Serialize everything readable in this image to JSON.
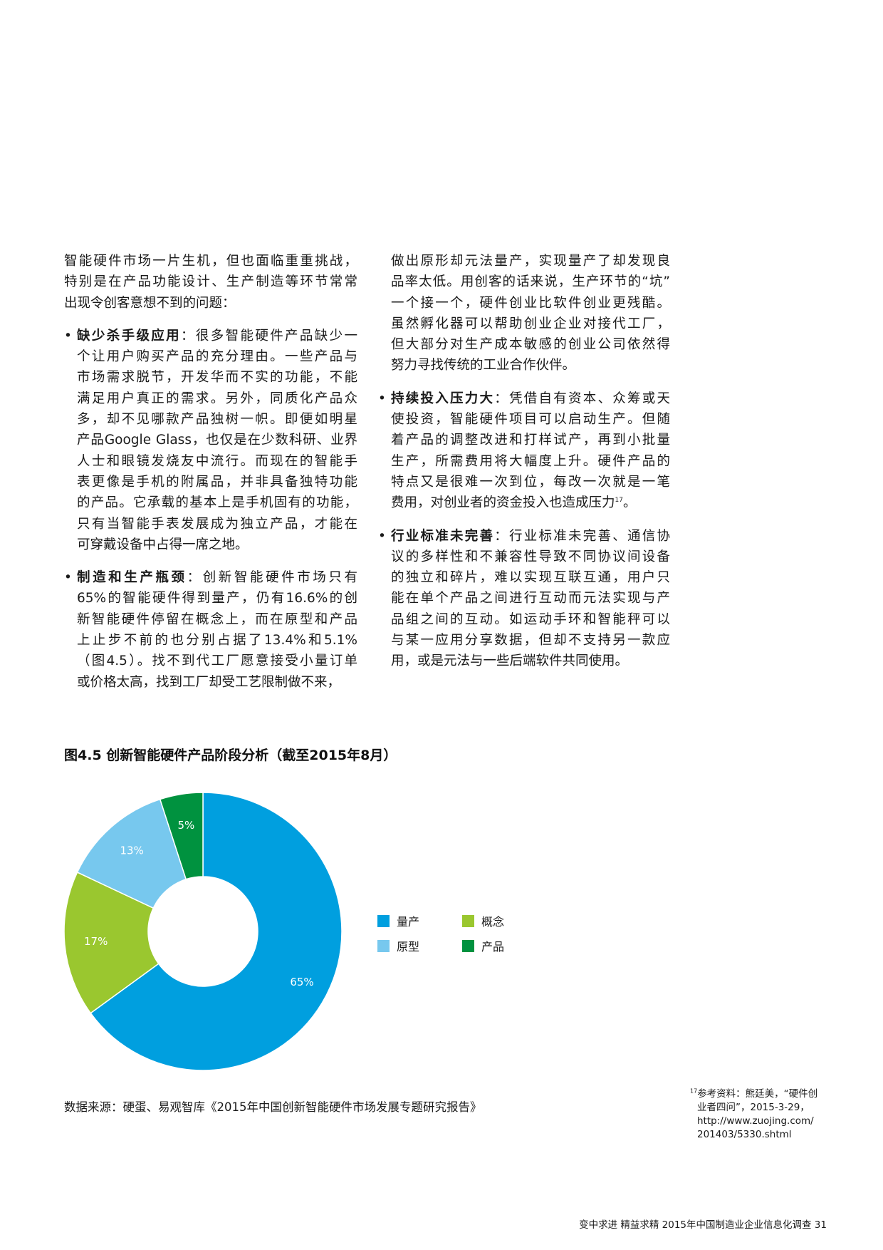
{
  "left_column": {
    "intro": [
      "智能硬件市场一片生机，但也面临重重挑战，",
      "特别是在产品功能设计、生产制造等环节常常",
      "出现令创客意想不到的问题："
    ],
    "bullet1": {
      "heading": "缺少杀手级应用",
      "lines": [
        "：很多智能硬件产品缺少一",
        "个让用户购买产品的充分理由。一些产品与",
        "市场需求脱节，开发华而不实的功能，不能",
        "满足用户真正的需求。另外，同质化产品众",
        "多，却不见哪款产品独树一帜。即便如明星",
        "产品Google Glass，也仅是在少数科研、业界",
        "人士和眼镜发烧友中流行。而现在的智能手",
        "表更像是手机的附属品，并非具备独特功能",
        "的产品。它承载的基本上是手机固有的功能，",
        "只有当智能手表发展成为独立产品，才能在",
        "可穿戴设备中占得一席之地。"
      ]
    },
    "bullet2": {
      "heading": "制造和生产瓶颈",
      "lines": [
        "：创新智能硬件市场只有",
        "65%的智能硬件得到量产，仍有16.6%的创",
        "新智能硬件停留在概念上，而在原型和产品",
        "上止步不前的也分别占据了13.4%和5.1%",
        "（图4.5）。找不到代工厂愿意接受小量订单",
        "或价格太高，找到工厂却受工艺限制做不来，"
      ]
    }
  },
  "right_column": {
    "cont": [
      "做出原形却元法量产，实现量产了却发现良",
      "品率太低。用创客的话来说，生产环节的“坑”",
      "一个接一个，硬件创业比软件创业更残酷。",
      "虽然孵化器可以帮助创业企业对接代工厂，",
      "但大部分对生产成本敏感的创业公司依然得",
      "努力寻找传统的工业合作伙伴。"
    ],
    "bullet3": {
      "heading": "持续投入压力大",
      "lines": [
        "：凭借自有资本、众筹或天",
        "使投资，智能硬件项目可以启动生产。但随",
        "着产品的调整改进和打样试产，再到小批量",
        "生产，所需费用将大幅度上升。硬件产品的",
        "特点又是很难一次到位，每改一次就是一笔",
        "费用，对创业者的资金投入也造成压力"
      ],
      "footnote_ref": "17",
      "end": "。"
    },
    "bullet4": {
      "heading": "行业标准未完善",
      "lines": [
        "：行业标准未完善、通信协",
        "议的多样性和不兼容性导致不同协议间设备",
        "的独立和碎片，难以实现互联互通，用户只",
        "能在单个产品之间进行互动而元法实现与产",
        "品组之间的互动。如运动手环和智能秤可以",
        "与某一应用分享数据，但却不支持另一款应",
        "用，或是元法与一些后端软件共同使用。"
      ]
    }
  },
  "bullet_char": "•",
  "chart_data": {
    "type": "pie",
    "donut": true,
    "title": "图4.5 创新智能硬件产品阶段分析（截至2015年8月）",
    "categories": [
      "量产",
      "概念",
      "原型",
      "产品"
    ],
    "values": [
      65,
      17,
      13,
      5
    ],
    "labels": [
      "65%",
      "17%",
      "13%",
      "5%"
    ],
    "colors": [
      "#009fdf",
      "#9ac72f",
      "#77c8ee",
      "#00923f"
    ],
    "start": "top",
    "direction": "clockwise",
    "legend_placement": "right",
    "legend_order": [
      "量产",
      "概念",
      "原型",
      "产品"
    ]
  },
  "source": "数据来源：硬蛋、易观智库《2015年中国创新智能硬件市场发展专题研究报告》",
  "footnote": {
    "num": "17",
    "lines": [
      "参考资料：熊廷美，“硬件创",
      "业者四问”，2015-3-29，",
      "http://www.zuojing.com/",
      "201403/5330.shtml"
    ]
  },
  "footer": "变中求进 精益求精  2015年中国制造业企业信息化调查 31"
}
